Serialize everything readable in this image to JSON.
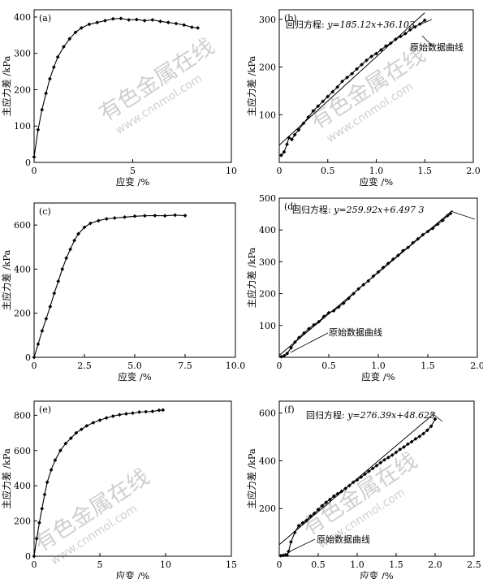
{
  "watermark": {
    "main": "有色金属在线",
    "url": "www.cnnmol.com"
  },
  "chart_data": [
    {
      "id": "a",
      "type": "line",
      "panel_label": "(a)",
      "xlabel": "应变 /%",
      "ylabel": "主应力差 /kPa",
      "xlim": [
        0,
        10
      ],
      "ylim": [
        0,
        420
      ],
      "xticks": [
        0,
        5,
        10
      ],
      "xtick_labels": [
        "0",
        "5",
        "10"
      ],
      "yticks": [
        0,
        100,
        200,
        300,
        400
      ],
      "ytick_labels": [
        "0",
        "100",
        "200",
        "300",
        "400"
      ],
      "grid": false,
      "series": [
        {
          "marker": "filled-diamond",
          "x": [
            0,
            0.2,
            0.4,
            0.6,
            0.8,
            1.0,
            1.2,
            1.5,
            1.8,
            2.1,
            2.4,
            2.8,
            3.2,
            3.6,
            4.0,
            4.4,
            4.8,
            5.2,
            5.6,
            6.0,
            6.4,
            6.8,
            7.2,
            7.6,
            8.0,
            8.3
          ],
          "y": [
            15,
            90,
            145,
            190,
            230,
            262,
            290,
            318,
            340,
            358,
            370,
            380,
            385,
            390,
            395,
            396,
            392,
            393,
            390,
            392,
            388,
            385,
            382,
            378,
            372,
            370
          ]
        }
      ]
    },
    {
      "id": "b",
      "type": "scatter",
      "panel_label": "(b)",
      "xlabel": "应变 /%",
      "ylabel": "主应力差 /kPa",
      "xlim": [
        0,
        2.0
      ],
      "ylim": [
        0,
        320
      ],
      "xticks": [
        0,
        0.5,
        1.0,
        1.5,
        2.0
      ],
      "xtick_labels": [
        "0",
        "0.5",
        "1.0",
        "1.5",
        "2.0"
      ],
      "yticks": [
        100,
        200,
        300
      ],
      "ytick_labels": [
        "100",
        "200",
        "300"
      ],
      "grid": false,
      "annotations": {
        "equation_prefix": "回归方程:",
        "equation": "y=185.12x+36.103",
        "data_label": "原始数据曲线"
      },
      "fit": {
        "slope": 185.12,
        "intercept": 36.103,
        "x_range": [
          0,
          1.5
        ]
      },
      "series": [
        {
          "marker": "filled-diamond",
          "x": [
            0.02,
            0.05,
            0.08,
            0.1,
            0.13,
            0.16,
            0.2,
            0.25,
            0.3,
            0.35,
            0.4,
            0.45,
            0.5,
            0.55,
            0.6,
            0.65,
            0.7,
            0.75,
            0.8,
            0.85,
            0.9,
            0.95,
            1.0,
            1.05,
            1.1,
            1.15,
            1.2,
            1.25,
            1.3,
            1.35,
            1.4,
            1.45,
            1.5
          ],
          "y": [
            15,
            22,
            38,
            52,
            48,
            58,
            68,
            82,
            95,
            108,
            118,
            128,
            138,
            148,
            158,
            170,
            178,
            186,
            196,
            205,
            214,
            222,
            228,
            236,
            244,
            250,
            258,
            264,
            270,
            278,
            284,
            290,
            298
          ]
        }
      ]
    },
    {
      "id": "c",
      "type": "line",
      "panel_label": "(c)",
      "xlabel": "应变 /%",
      "ylabel": "主应力差 /kPa",
      "xlim": [
        0,
        10.0
      ],
      "ylim": [
        0,
        700
      ],
      "xticks": [
        0,
        2.5,
        5.0,
        7.5,
        10.0
      ],
      "xtick_labels": [
        "0",
        "2.5",
        "5.0",
        "7.5",
        "10.0"
      ],
      "yticks": [
        0,
        200,
        400,
        600
      ],
      "ytick_labels": [
        "0",
        "200",
        "400",
        "600"
      ],
      "grid": false,
      "series": [
        {
          "marker": "filled-diamond",
          "x": [
            0,
            0.2,
            0.4,
            0.6,
            0.8,
            1.0,
            1.2,
            1.4,
            1.6,
            1.8,
            2.0,
            2.2,
            2.5,
            2.8,
            3.2,
            3.6,
            4.0,
            4.5,
            5.0,
            5.5,
            6.0,
            6.5,
            7.0,
            7.5
          ],
          "y": [
            0,
            60,
            120,
            175,
            230,
            290,
            345,
            400,
            450,
            490,
            530,
            560,
            590,
            608,
            620,
            628,
            632,
            636,
            640,
            642,
            643,
            642,
            645,
            643
          ]
        }
      ]
    },
    {
      "id": "d",
      "type": "scatter",
      "panel_label": "(d)",
      "xlabel": "应变 /%",
      "ylabel": "主应力差 /kPa",
      "xlim": [
        0,
        2.0
      ],
      "ylim": [
        0,
        500
      ],
      "xticks": [
        0,
        0.5,
        1.0,
        1.5,
        2.0
      ],
      "xtick_labels": [
        "0",
        "0.5",
        "1.0",
        "1.5",
        "2.0"
      ],
      "yticks": [
        100,
        200,
        300,
        400,
        500
      ],
      "ytick_labels": [
        "100",
        "200",
        "300",
        "400",
        "500"
      ],
      "grid": false,
      "annotations": {
        "equation_prefix": "回归方程:",
        "equation": "y=259.92x+6.497 3",
        "data_label": "原始数据曲线"
      },
      "fit": {
        "slope": 259.92,
        "intercept": 6.4973,
        "x_range": [
          0,
          1.75
        ]
      },
      "series": [
        {
          "marker": "filled-diamond",
          "x": [
            0.02,
            0.05,
            0.08,
            0.12,
            0.16,
            0.2,
            0.25,
            0.3,
            0.35,
            0.4,
            0.45,
            0.5,
            0.55,
            0.6,
            0.65,
            0.7,
            0.75,
            0.8,
            0.85,
            0.9,
            0.95,
            1.0,
            1.05,
            1.1,
            1.15,
            1.2,
            1.25,
            1.3,
            1.35,
            1.4,
            1.45,
            1.5,
            1.55,
            1.6,
            1.65,
            1.7,
            1.73
          ],
          "y": [
            2,
            5,
            12,
            30,
            48,
            62,
            76,
            90,
            102,
            112,
            128,
            140,
            146,
            158,
            170,
            185,
            200,
            215,
            228,
            240,
            255,
            268,
            282,
            295,
            308,
            320,
            335,
            345,
            360,
            372,
            385,
            395,
            405,
            418,
            430,
            445,
            452
          ]
        }
      ]
    },
    {
      "id": "e",
      "type": "line",
      "panel_label": "(e)",
      "xlabel": "应变 /%",
      "ylabel": "主应力差 /kPa",
      "xlim": [
        0,
        15
      ],
      "ylim": [
        0,
        880
      ],
      "xticks": [
        0,
        5,
        10,
        15
      ],
      "xtick_labels": [
        "0",
        "5",
        "10",
        "15"
      ],
      "yticks": [
        0,
        200,
        400,
        600,
        800
      ],
      "ytick_labels": [
        "0",
        "200",
        "400",
        "600",
        "800"
      ],
      "grid": false,
      "series": [
        {
          "marker": "filled-diamond",
          "x": [
            0,
            0.2,
            0.4,
            0.6,
            0.8,
            1.0,
            1.3,
            1.6,
            2.0,
            2.4,
            2.8,
            3.2,
            3.6,
            4.0,
            4.5,
            5.0,
            5.5,
            6.0,
            6.5,
            7.0,
            7.5,
            8.0,
            8.5,
            9.0,
            9.5,
            9.8
          ],
          "y": [
            0,
            100,
            190,
            270,
            350,
            420,
            490,
            545,
            600,
            640,
            670,
            700,
            720,
            740,
            758,
            772,
            785,
            795,
            803,
            808,
            812,
            818,
            820,
            822,
            828,
            830
          ]
        }
      ]
    },
    {
      "id": "f",
      "type": "scatter",
      "panel_label": "(f)",
      "xlabel": "应变 /%",
      "ylabel": "主应力差 /kPa",
      "xlim": [
        0,
        2.5
      ],
      "ylim": [
        0,
        650
      ],
      "xticks": [
        0,
        0.5,
        1.0,
        1.5,
        2.0,
        2.5
      ],
      "xtick_labels": [
        "0",
        "0.5",
        "1.0",
        "1.5",
        "2.0",
        "2.5"
      ],
      "yticks": [
        200,
        400,
        600
      ],
      "ytick_labels": [
        "200",
        "400",
        "600"
      ],
      "grid": false,
      "annotations": {
        "equation_prefix": "回归方程:",
        "equation": "y=276.39x+48.625",
        "data_label": "原始数据曲线"
      },
      "fit": {
        "slope": 276.39,
        "intercept": 48.625,
        "x_range": [
          0,
          2.0
        ]
      },
      "series": [
        {
          "marker": "filled-diamond",
          "x": [
            0.02,
            0.05,
            0.08,
            0.1,
            0.12,
            0.15,
            0.2,
            0.25,
            0.3,
            0.35,
            0.4,
            0.45,
            0.5,
            0.55,
            0.6,
            0.65,
            0.7,
            0.75,
            0.8,
            0.85,
            0.9,
            0.95,
            1.0,
            1.05,
            1.1,
            1.15,
            1.2,
            1.25,
            1.3,
            1.35,
            1.4,
            1.45,
            1.5,
            1.55,
            1.6,
            1.65,
            1.7,
            1.75,
            1.8,
            1.85,
            1.9,
            1.95,
            2.0
          ],
          "y": [
            2,
            4,
            6,
            5,
            20,
            60,
            100,
            128,
            140,
            150,
            168,
            180,
            196,
            212,
            226,
            238,
            252,
            262,
            272,
            284,
            296,
            310,
            320,
            332,
            344,
            356,
            368,
            380,
            392,
            404,
            414,
            424,
            436,
            448,
            458,
            470,
            480,
            492,
            502,
            514,
            528,
            545,
            575
          ]
        }
      ]
    }
  ]
}
